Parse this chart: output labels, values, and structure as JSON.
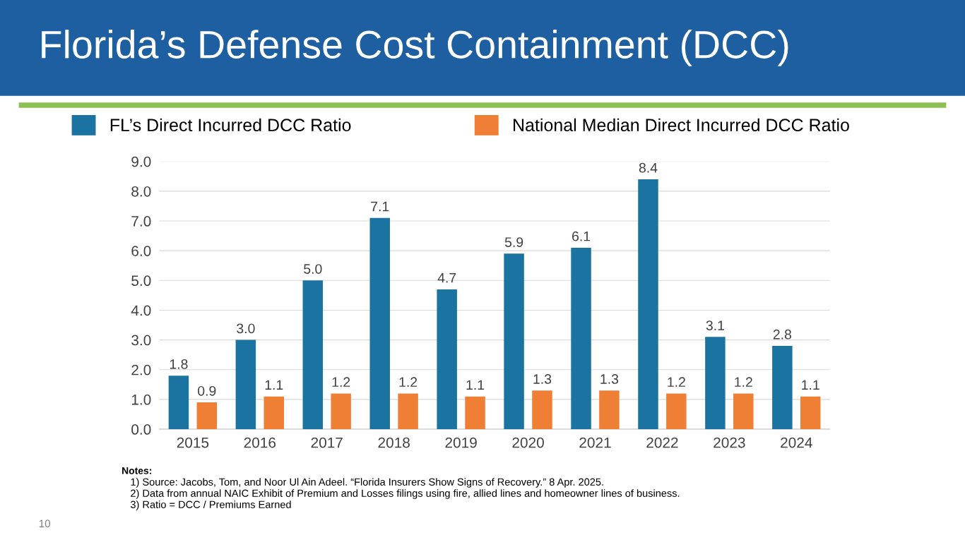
{
  "chart_data": {
    "type": "bar",
    "title": "Florida’s Defense Cost Containment (DCC)",
    "categories": [
      "2015",
      "2016",
      "2017",
      "2018",
      "2019",
      "2020",
      "2021",
      "2022",
      "2023",
      "2024"
    ],
    "series": [
      {
        "name": "FL’s Direct Incurred DCC Ratio",
        "color": "#1a73a0",
        "values": [
          1.8,
          3.0,
          5.0,
          7.1,
          4.7,
          5.9,
          6.1,
          8.4,
          3.1,
          2.8
        ],
        "value_labels": [
          "1.8",
          "3.0",
          "5.0",
          "7.1",
          "4.7",
          "5.9",
          "6.1",
          "8.4",
          "3.1",
          "2.8"
        ]
      },
      {
        "name": "National Median Direct Incurred DCC Ratio",
        "color": "#ef7f35",
        "values": [
          0.9,
          1.1,
          1.2,
          1.2,
          1.1,
          1.3,
          1.3,
          1.2,
          1.2,
          1.1
        ],
        "value_labels": [
          "0.9",
          "1.1",
          "1.2",
          "1.2",
          "1.1",
          "1.3",
          "1.3",
          "1.2",
          "1.2",
          "1.1"
        ]
      }
    ],
    "ylim": [
      0,
      9
    ],
    "yticks": [
      {
        "value": 0,
        "label": "0.0"
      },
      {
        "value": 1,
        "label": "1.0"
      },
      {
        "value": 2,
        "label": "2.0"
      },
      {
        "value": 3,
        "label": "3.0"
      },
      {
        "value": 4,
        "label": "4.0"
      },
      {
        "value": 5,
        "label": "5.0"
      },
      {
        "value": 6,
        "label": "6.0"
      },
      {
        "value": 7,
        "label": "7.0"
      },
      {
        "value": 8,
        "label": "8.0"
      },
      {
        "value": 9,
        "label": "9.0"
      }
    ],
    "grid": "y",
    "legend": "top",
    "annotations": [
      "Notes:",
      "1) Source: Jacobs, Tom, and Noor Ul Ain Adeel. “Florida Insurers Show Signs of Recovery.” 8 Apr. 2025.",
      "2) Data from annual NAIC Exhibit of Premium and Losses filings using fire, allied lines and homeowner lines of business.",
      "3) Ratio = DCC / Premiums Earned",
      "10"
    ]
  }
}
